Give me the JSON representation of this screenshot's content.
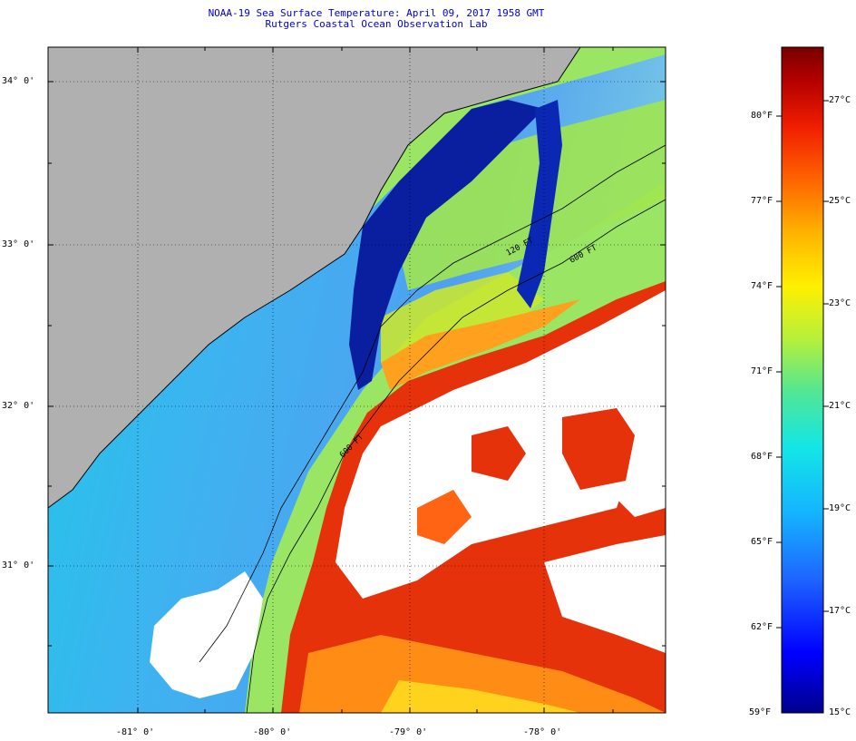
{
  "header": {
    "title": "NOAA-19 Sea Surface Temperature:  April 09, 2017 1958 GMT",
    "subtitle": "Rutgers Coastal Ocean Observation Lab"
  },
  "map": {
    "lat_labels": [
      "34° 0'",
      "33° 0'",
      "32° 0'",
      "31° 0'"
    ],
    "lon_labels": [
      "-81° 0'",
      "-80° 0'",
      "-79° 0'",
      "-78° 0'"
    ],
    "contour_labels": [
      "120 FT",
      "600 FT",
      "600 FT"
    ],
    "colors": {
      "land": "#b0b0b0",
      "cloud": "#ffffff",
      "cold": "#0a1ea0",
      "cool": "#2aa4e6",
      "warm": "#ffd21e",
      "hot": "#e6280a"
    }
  },
  "colorbar": {
    "fahrenheit_labels": [
      "80°F",
      "77°F",
      "74°F",
      "71°F",
      "68°F",
      "65°F",
      "62°F",
      "59°F"
    ],
    "celsius_labels": [
      "27°C",
      "25°C",
      "23°C",
      "21°C",
      "19°C",
      "17°C",
      "15°C"
    ],
    "range_f": [
      59,
      82
    ],
    "range_c": [
      15,
      27.8
    ]
  }
}
